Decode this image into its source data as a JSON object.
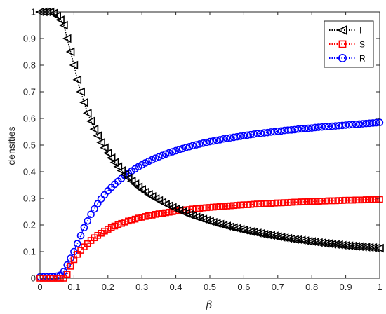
{
  "chart_data": {
    "type": "line",
    "title": "",
    "xlabel": "β",
    "ylabel": "densities",
    "xlim": [
      0,
      1
    ],
    "ylim": [
      0,
      1
    ],
    "xticks": [
      "0",
      "0.1",
      "0.2",
      "0.3",
      "0.4",
      "0.5",
      "0.6",
      "0.7",
      "0.8",
      "0.9",
      "1"
    ],
    "yticks": [
      "0",
      "0.1",
      "0.2",
      "0.3",
      "0.4",
      "0.5",
      "0.6",
      "0.7",
      "0.8",
      "0.9",
      "1"
    ],
    "grid": false,
    "legend_position": "top-right",
    "x": [
      0,
      0.01,
      0.02,
      0.03,
      0.04,
      0.05,
      0.06,
      0.07,
      0.08,
      0.09,
      0.1,
      0.11,
      0.12,
      0.13,
      0.14,
      0.15,
      0.16,
      0.17,
      0.18,
      0.19,
      0.2,
      0.21,
      0.22,
      0.23,
      0.24,
      0.25,
      0.26,
      0.27,
      0.28,
      0.29,
      0.3,
      0.31,
      0.32,
      0.33,
      0.34,
      0.35,
      0.36,
      0.37,
      0.38,
      0.39,
      0.4,
      0.41,
      0.42,
      0.43,
      0.44,
      0.45,
      0.46,
      0.47,
      0.48,
      0.49,
      0.5,
      0.51,
      0.52,
      0.53,
      0.54,
      0.55,
      0.56,
      0.57,
      0.58,
      0.59,
      0.6,
      0.61,
      0.62,
      0.63,
      0.64,
      0.65,
      0.66,
      0.67,
      0.68,
      0.69,
      0.7,
      0.71,
      0.72,
      0.73,
      0.74,
      0.75,
      0.76,
      0.77,
      0.78,
      0.79,
      0.8,
      0.81,
      0.82,
      0.83,
      0.84,
      0.85,
      0.86,
      0.87,
      0.88,
      0.89,
      0.9,
      0.91,
      0.92,
      0.93,
      0.94,
      0.95,
      0.96,
      0.97,
      0.98,
      0.99,
      1
    ],
    "series": [
      {
        "name": "I",
        "color": "#000000",
        "marker": "triangle-left",
        "values": [
          1,
          1,
          1,
          1,
          0.995,
          0.985,
          0.97,
          0.95,
          0.9,
          0.85,
          0.8,
          0.745,
          0.7,
          0.66,
          0.62,
          0.59,
          0.56,
          0.535,
          0.51,
          0.49,
          0.47,
          0.452,
          0.435,
          0.419,
          0.404,
          0.39,
          0.377,
          0.365,
          0.354,
          0.343,
          0.333,
          0.324,
          0.315,
          0.307,
          0.299,
          0.292,
          0.285,
          0.278,
          0.272,
          0.266,
          0.26,
          0.255,
          0.249,
          0.244,
          0.239,
          0.235,
          0.23,
          0.226,
          0.222,
          0.218,
          0.214,
          0.21,
          0.206,
          0.203,
          0.199,
          0.196,
          0.193,
          0.19,
          0.187,
          0.184,
          0.181,
          0.178,
          0.175,
          0.173,
          0.17,
          0.168,
          0.165,
          0.163,
          0.161,
          0.159,
          0.156,
          0.154,
          0.152,
          0.15,
          0.148,
          0.146,
          0.145,
          0.143,
          0.141,
          0.139,
          0.138,
          0.136,
          0.134,
          0.133,
          0.131,
          0.13,
          0.128,
          0.127,
          0.126,
          0.124,
          0.123,
          0.122,
          0.121,
          0.12,
          0.119,
          0.118,
          0.117,
          0.116,
          0.115,
          0.114,
          0.113
        ]
      },
      {
        "name": "S",
        "color": "#ff0000",
        "marker": "square",
        "values": [
          0,
          0,
          0,
          0,
          0,
          0,
          0,
          0,
          0.015,
          0.045,
          0.07,
          0.09,
          0.105,
          0.118,
          0.13,
          0.142,
          0.152,
          0.161,
          0.169,
          0.177,
          0.184,
          0.19,
          0.196,
          0.201,
          0.206,
          0.211,
          0.215,
          0.219,
          0.222,
          0.226,
          0.229,
          0.232,
          0.235,
          0.237,
          0.24,
          0.242,
          0.244,
          0.246,
          0.248,
          0.25,
          0.252,
          0.254,
          0.255,
          0.257,
          0.258,
          0.26,
          0.261,
          0.262,
          0.264,
          0.265,
          0.266,
          0.267,
          0.268,
          0.269,
          0.27,
          0.271,
          0.272,
          0.273,
          0.274,
          0.275,
          0.276,
          0.276,
          0.277,
          0.278,
          0.279,
          0.279,
          0.28,
          0.281,
          0.281,
          0.282,
          0.283,
          0.283,
          0.284,
          0.284,
          0.285,
          0.286,
          0.286,
          0.287,
          0.287,
          0.288,
          0.288,
          0.289,
          0.289,
          0.29,
          0.29,
          0.291,
          0.291,
          0.291,
          0.292,
          0.292,
          0.293,
          0.293,
          0.293,
          0.294,
          0.294,
          0.294,
          0.295,
          0.295,
          0.295,
          0.296,
          0.296
        ]
      },
      {
        "name": "R",
        "color": "#0000ff",
        "marker": "circle",
        "values": [
          0.005,
          0.005,
          0.005,
          0.005,
          0.006,
          0.008,
          0.012,
          0.025,
          0.05,
          0.075,
          0.1,
          0.13,
          0.16,
          0.19,
          0.215,
          0.24,
          0.26,
          0.28,
          0.298,
          0.313,
          0.328,
          0.341,
          0.353,
          0.364,
          0.375,
          0.385,
          0.394,
          0.403,
          0.411,
          0.419,
          0.426,
          0.433,
          0.439,
          0.445,
          0.451,
          0.456,
          0.461,
          0.466,
          0.471,
          0.475,
          0.479,
          0.483,
          0.487,
          0.491,
          0.494,
          0.498,
          0.501,
          0.504,
          0.507,
          0.51,
          0.513,
          0.515,
          0.518,
          0.52,
          0.523,
          0.525,
          0.527,
          0.529,
          0.531,
          0.533,
          0.535,
          0.537,
          0.539,
          0.541,
          0.543,
          0.544,
          0.546,
          0.547,
          0.549,
          0.55,
          0.552,
          0.553,
          0.555,
          0.556,
          0.557,
          0.558,
          0.56,
          0.561,
          0.562,
          0.563,
          0.564,
          0.566,
          0.567,
          0.568,
          0.569,
          0.57,
          0.571,
          0.572,
          0.573,
          0.574,
          0.575,
          0.576,
          0.577,
          0.578,
          0.579,
          0.58,
          0.581,
          0.582,
          0.583,
          0.584,
          0.585
        ]
      }
    ]
  }
}
